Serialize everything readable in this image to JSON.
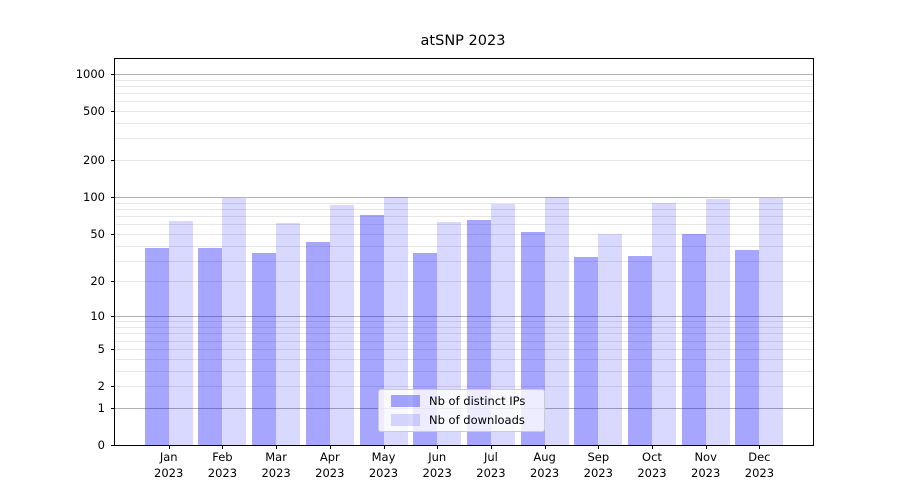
{
  "title": "atSNP 2023",
  "legend": {
    "items": [
      {
        "label": "Nb of distinct IPs",
        "color": "rgba(0,0,255,0.35)"
      },
      {
        "label": "Nb of downloads",
        "color": "rgba(0,0,255,0.15)"
      }
    ],
    "position": "lower center"
  },
  "colors": {
    "bar_distinct_ips_over_white": "#a6a6ff",
    "bar_downloads_over_white": "#d9d9ff",
    "major_grid": "#b2b2b2",
    "minor_grid": "#e6e6e6",
    "axis": "#000000",
    "legend_border": "#cccccc"
  },
  "chart_data": {
    "type": "bar",
    "title": "atSNP 2023",
    "categories": [
      "Jan 2023",
      "Feb 2023",
      "Mar 2023",
      "Apr 2023",
      "May 2023",
      "Jun 2023",
      "Jul 2023",
      "Aug 2023",
      "Sep 2023",
      "Oct 2023",
      "Nov 2023",
      "Dec 2023"
    ],
    "series": [
      {
        "name": "Nb of distinct IPs",
        "color": "rgba(0,0,255,0.35)",
        "values": [
          38,
          38,
          35,
          43,
          71,
          35,
          65,
          52,
          32,
          33,
          50,
          37
        ]
      },
      {
        "name": "Nb of downloads",
        "color": "rgba(0,0,255,0.15)",
        "values": [
          64,
          99,
          61,
          86,
          100,
          63,
          88,
          101,
          50,
          90,
          97,
          99
        ]
      }
    ],
    "xlabel": "",
    "ylabel": "",
    "yscale": "log10(value+1)",
    "ylim": [
      0,
      1325
    ],
    "y_tick_values": [
      0,
      1,
      2,
      5,
      10,
      20,
      50,
      100,
      200,
      500,
      1000
    ],
    "y_major_gridlines": [
      1,
      10,
      100,
      1000
    ],
    "y_minor_gridlines": [
      2,
      3,
      4,
      5,
      6,
      7,
      8,
      9,
      20,
      30,
      40,
      50,
      60,
      70,
      80,
      90,
      200,
      300,
      400,
      500,
      600,
      700,
      800,
      900
    ],
    "grid": true,
    "legend_position": "lower center"
  }
}
